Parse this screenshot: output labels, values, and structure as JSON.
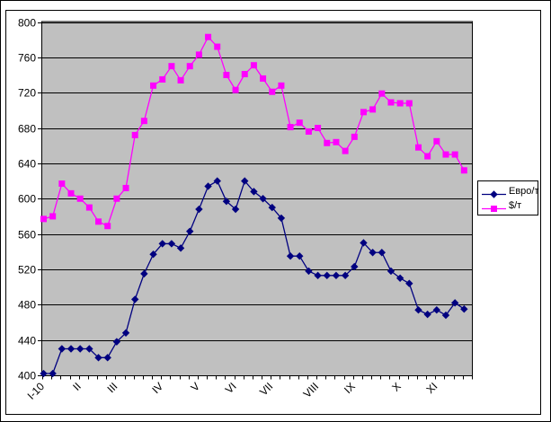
{
  "chart_data": {
    "type": "line",
    "title": "",
    "grid": true,
    "legend_position": "right",
    "plot_background": "#c0c0c0",
    "grid_color": "#000000",
    "axis_color": "#000000",
    "y_axis": {
      "min": 400,
      "max": 800,
      "step": 40,
      "tick_labels": [
        "400",
        "440",
        "480",
        "520",
        "560",
        "600",
        "640",
        "680",
        "720",
        "760",
        "800"
      ]
    },
    "x_axis": {
      "unit": "weeks",
      "tick_labels": [
        {
          "label": "I-10",
          "week_index": 0
        },
        {
          "label": "II",
          "week_index": 4
        },
        {
          "label": "III",
          "week_index": 8
        },
        {
          "label": "IV",
          "week_index": 13
        },
        {
          "label": "V",
          "week_index": 17
        },
        {
          "label": "VI",
          "week_index": 21
        },
        {
          "label": "VII",
          "week_index": 25
        },
        {
          "label": "VIII",
          "week_index": 30
        },
        {
          "label": "IX",
          "week_index": 34
        },
        {
          "label": "X",
          "week_index": 39
        },
        {
          "label": "XI",
          "week_index": 43
        }
      ]
    },
    "series": [
      {
        "name": "Евро/т",
        "color": "#000080",
        "marker": "diamond",
        "values": [
          402,
          402,
          430,
          430,
          430,
          430,
          420,
          420,
          438,
          448,
          486,
          515,
          537,
          549,
          549,
          544,
          563,
          588,
          614,
          620,
          597,
          588,
          620,
          608,
          600,
          590,
          578,
          535,
          535,
          518,
          513,
          513,
          513,
          513,
          523,
          550,
          539,
          539,
          518,
          510,
          504,
          474,
          469,
          474,
          468,
          482,
          475
        ]
      },
      {
        "name": "$/т",
        "color": "#ff00ff",
        "marker": "square",
        "values": [
          577,
          580,
          617,
          606,
          600,
          590,
          574,
          569,
          600,
          612,
          672,
          688,
          728,
          735,
          750,
          734,
          750,
          763,
          783,
          772,
          740,
          723,
          741,
          751,
          736,
          721,
          728,
          681,
          686,
          676,
          680,
          663,
          664,
          654,
          670,
          698,
          701,
          719,
          709,
          708,
          708,
          658,
          648,
          665,
          650,
          650,
          632
        ]
      }
    ]
  }
}
